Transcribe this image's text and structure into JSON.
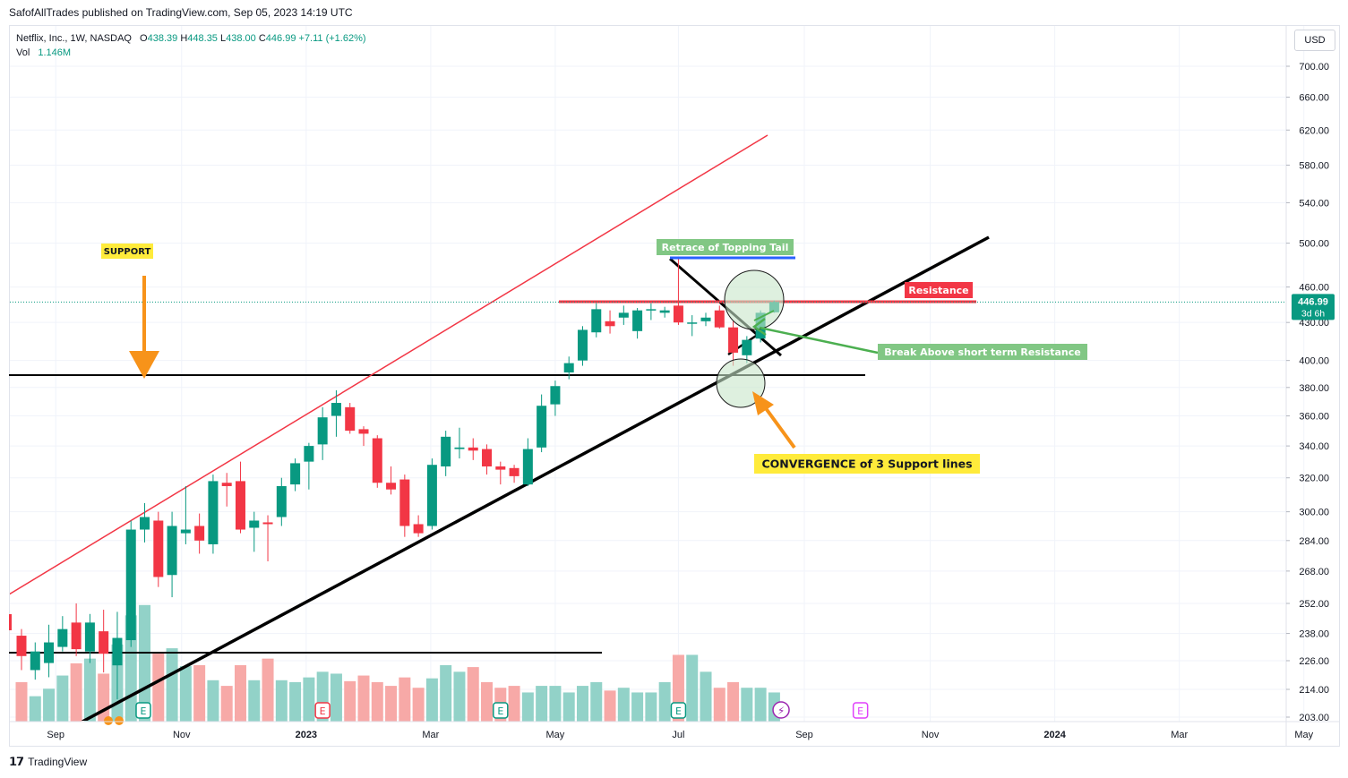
{
  "publisher_line": "SafofAllTrades published on TradingView.com, Sep 05, 2023 14:19 UTC",
  "legend": {
    "symbol": "Netflix, Inc., 1W, NASDAQ",
    "o_label": "O",
    "o": "438.39",
    "h_label": "H",
    "h": "448.35",
    "l_label": "L",
    "l": "438.00",
    "c_label": "C",
    "c": "446.99",
    "change": "+7.11 (+1.62%)",
    "vol_label": "Vol",
    "vol": "1.146M"
  },
  "currency_button": "USD",
  "price_tag": {
    "price": "446.99",
    "countdown": "3d 6h"
  },
  "footer": {
    "logo": "𝟭𝟳",
    "brand": "TradingView"
  },
  "colors": {
    "up": "#089981",
    "down": "#f23645",
    "vol_up": "#92d2c8",
    "vol_down": "#f7a9a7",
    "channel_top": "#f23645",
    "resistance": "#f23645",
    "tail_line": "#2962ff",
    "arrow": "#f7931a",
    "circle_fill": "#c8e6c9",
    "circle_stroke": "#1b1b1b",
    "break_arrow": "#4caf50",
    "earnings": "#089981",
    "earnings_red": "#f23645",
    "earnings_future": "#e040fb"
  },
  "chart_data": {
    "type": "candlestick",
    "interval": "1W",
    "y_scale": "log",
    "ylim": [
      203,
      730
    ],
    "y_ticks": [
      "700.00",
      "660.00",
      "620.00",
      "580.00",
      "540.00",
      "500.00",
      "460.00",
      "430.00",
      "400.00",
      "380.00",
      "360.00",
      "340.00",
      "320.00",
      "300.00",
      "284.00",
      "268.00",
      "252.00",
      "238.00",
      "226.00",
      "214.00",
      "203.00"
    ],
    "y_tick_values": [
      700,
      660,
      620,
      580,
      540,
      500,
      460,
      430,
      400,
      380,
      360,
      340,
      320,
      300,
      284,
      268,
      252,
      238,
      226,
      214,
      203
    ],
    "x_ticks": [
      "Sep",
      "Nov",
      "2023",
      "Mar",
      "May",
      "Jul",
      "Sep",
      "Nov",
      "2024",
      "Mar",
      "May"
    ],
    "x_tick_bars": [
      2.5,
      11.7,
      20.8,
      29.9,
      39.0,
      48.0,
      57.2,
      66.4,
      75.5,
      84.6,
      93.7
    ],
    "candles": [
      {
        "o": 237,
        "h": 240,
        "l": 222,
        "c": 228
      },
      {
        "o": 222,
        "h": 234,
        "l": 218,
        "c": 230
      },
      {
        "o": 225,
        "h": 242,
        "l": 219,
        "c": 234
      },
      {
        "o": 232,
        "h": 246,
        "l": 230,
        "c": 240
      },
      {
        "o": 243,
        "h": 252,
        "l": 228,
        "c": 231
      },
      {
        "o": 230,
        "h": 247,
        "l": 225,
        "c": 243
      },
      {
        "o": 239,
        "h": 249,
        "l": 221,
        "c": 229
      },
      {
        "o": 224,
        "h": 248,
        "l": 210,
        "c": 236
      },
      {
        "o": 235,
        "h": 295,
        "l": 232,
        "c": 290
      },
      {
        "o": 290,
        "h": 305,
        "l": 283,
        "c": 297
      },
      {
        "o": 295,
        "h": 300,
        "l": 260,
        "c": 265
      },
      {
        "o": 266,
        "h": 300,
        "l": 255,
        "c": 292
      },
      {
        "o": 288,
        "h": 315,
        "l": 282,
        "c": 290
      },
      {
        "o": 292,
        "h": 299,
        "l": 277,
        "c": 284
      },
      {
        "o": 282,
        "h": 322,
        "l": 277,
        "c": 318
      },
      {
        "o": 317,
        "h": 323,
        "l": 303,
        "c": 315
      },
      {
        "o": 318,
        "h": 330,
        "l": 288,
        "c": 290
      },
      {
        "o": 291,
        "h": 300,
        "l": 278,
        "c": 295
      },
      {
        "o": 294,
        "h": 298,
        "l": 273,
        "c": 293
      },
      {
        "o": 297,
        "h": 320,
        "l": 292,
        "c": 315
      },
      {
        "o": 316,
        "h": 332,
        "l": 312,
        "c": 329
      },
      {
        "o": 330,
        "h": 342,
        "l": 313,
        "c": 340
      },
      {
        "o": 341,
        "h": 366,
        "l": 331,
        "c": 359
      },
      {
        "o": 360,
        "h": 378,
        "l": 346,
        "c": 369
      },
      {
        "o": 366,
        "h": 369,
        "l": 348,
        "c": 350
      },
      {
        "o": 351,
        "h": 353,
        "l": 340,
        "c": 348
      },
      {
        "o": 345,
        "h": 347,
        "l": 314,
        "c": 317
      },
      {
        "o": 317,
        "h": 327,
        "l": 310,
        "c": 313
      },
      {
        "o": 319,
        "h": 322,
        "l": 286,
        "c": 292
      },
      {
        "o": 293,
        "h": 298,
        "l": 286,
        "c": 288
      },
      {
        "o": 292,
        "h": 332,
        "l": 290,
        "c": 328
      },
      {
        "o": 327,
        "h": 350,
        "l": 321,
        "c": 346
      },
      {
        "o": 338,
        "h": 352,
        "l": 332,
        "c": 339
      },
      {
        "o": 339,
        "h": 345,
        "l": 331,
        "c": 337
      },
      {
        "o": 338,
        "h": 341,
        "l": 322,
        "c": 327
      },
      {
        "o": 327,
        "h": 330,
        "l": 316,
        "c": 325
      },
      {
        "o": 326,
        "h": 328,
        "l": 317,
        "c": 321
      },
      {
        "o": 316,
        "h": 345,
        "l": 315,
        "c": 338
      },
      {
        "o": 339,
        "h": 375,
        "l": 336,
        "c": 367
      },
      {
        "o": 368,
        "h": 385,
        "l": 360,
        "c": 381
      },
      {
        "o": 391,
        "h": 403,
        "l": 386,
        "c": 398
      },
      {
        "o": 400,
        "h": 427,
        "l": 396,
        "c": 424
      },
      {
        "o": 422,
        "h": 446,
        "l": 418,
        "c": 441
      },
      {
        "o": 431,
        "h": 440,
        "l": 421,
        "c": 427
      },
      {
        "o": 434,
        "h": 444,
        "l": 428,
        "c": 438
      },
      {
        "o": 423,
        "h": 442,
        "l": 417,
        "c": 440
      },
      {
        "o": 440,
        "h": 446,
        "l": 432,
        "c": 441
      },
      {
        "o": 438,
        "h": 443,
        "l": 434,
        "c": 440
      },
      {
        "o": 444,
        "h": 485,
        "l": 428,
        "c": 430
      },
      {
        "o": 429,
        "h": 436,
        "l": 419,
        "c": 430
      },
      {
        "o": 431,
        "h": 438,
        "l": 427,
        "c": 434
      },
      {
        "o": 440,
        "h": 444,
        "l": 425,
        "c": 426
      },
      {
        "o": 426,
        "h": 431,
        "l": 396,
        "c": 406
      },
      {
        "o": 404,
        "h": 419,
        "l": 398,
        "c": 416
      },
      {
        "o": 417,
        "h": 440,
        "l": 414,
        "c": 438
      },
      {
        "o": 438.39,
        "h": 448.35,
        "l": 438,
        "c": 446.99
      }
    ],
    "volume_relative": [
      0.42,
      0.27,
      0.35,
      0.49,
      0.62,
      0.67,
      0.51,
      0.82,
      1.13,
      1.24,
      0.74,
      0.78,
      0.59,
      0.6,
      0.44,
      0.38,
      0.6,
      0.44,
      0.67,
      0.44,
      0.42,
      0.47,
      0.53,
      0.51,
      0.43,
      0.49,
      0.42,
      0.38,
      0.47,
      0.36,
      0.46,
      0.6,
      0.53,
      0.58,
      0.42,
      0.36,
      0.38,
      0.31,
      0.38,
      0.38,
      0.31,
      0.38,
      0.42,
      0.33,
      0.36,
      0.31,
      0.31,
      0.42,
      0.71,
      0.71,
      0.53,
      0.36,
      0.42,
      0.36,
      0.36,
      0.31
    ],
    "lines": {
      "support_horizontal": 389,
      "resistance": 447,
      "topping_tail": 485,
      "volume_reference": "horizontal line across the volume area"
    },
    "annotations": [
      {
        "text": "SUPPORT",
        "kind": "label"
      },
      {
        "text": "Retrace of Topping Tail",
        "kind": "label"
      },
      {
        "text": "Resistance",
        "kind": "label"
      },
      {
        "text": "Break Above short term Resistance",
        "kind": "label"
      },
      {
        "text": "CONVERGENCE of 3 Support lines",
        "kind": "label"
      }
    ],
    "events": [
      {
        "bar": 8.9,
        "type": "earnings",
        "label": "E"
      },
      {
        "bar": 22,
        "type": "earnings",
        "label": "E"
      },
      {
        "bar": 35,
        "type": "earnings",
        "label": "E"
      },
      {
        "bar": 48,
        "type": "earnings",
        "label": "E"
      },
      {
        "bar": 55.5,
        "type": "split",
        "label": "⚡"
      },
      {
        "bar": 61.3,
        "type": "earnings-future",
        "label": "E"
      }
    ]
  }
}
